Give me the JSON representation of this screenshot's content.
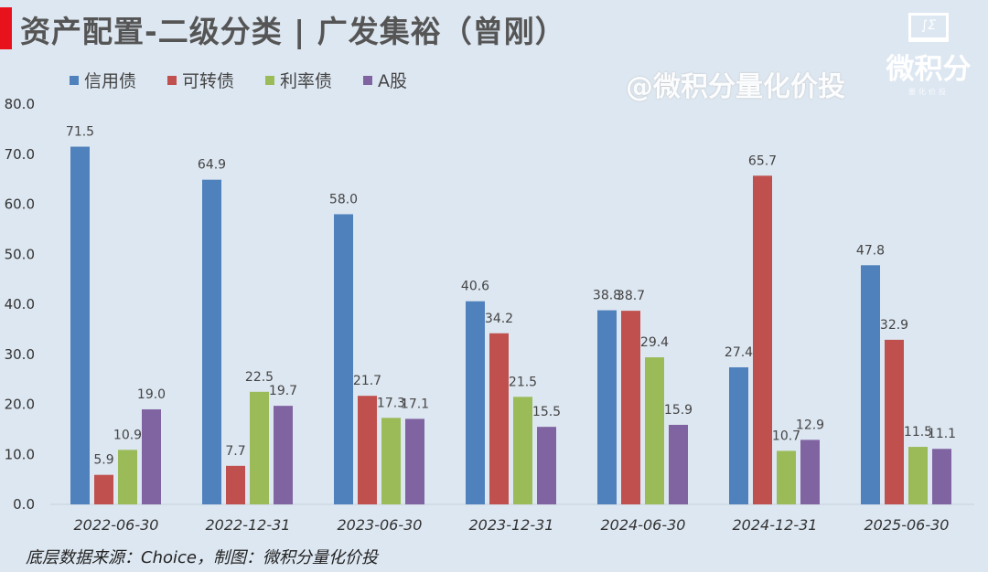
{
  "title": "资产配置-二级分类 | 广发集裕（曾刚）",
  "watermark": "@微积分量化价投",
  "logo": {
    "mark": "∫Σ",
    "name": "微积分",
    "sub": "量化价投"
  },
  "footer": "底层数据来源：Choice，制图：微积分量化价投",
  "chart_data": {
    "type": "bar",
    "categories": [
      "2022-06-30",
      "2022-12-31",
      "2023-06-30",
      "2023-12-31",
      "2024-06-30",
      "2024-12-31",
      "2025-06-30"
    ],
    "series": [
      {
        "name": "信用债",
        "color": "#4f81bd",
        "values": [
          71.5,
          64.9,
          58.0,
          40.6,
          38.8,
          27.4,
          47.8
        ]
      },
      {
        "name": "可转债",
        "color": "#c0504d",
        "values": [
          5.9,
          7.7,
          21.7,
          34.2,
          38.7,
          65.7,
          32.9
        ]
      },
      {
        "name": "利率债",
        "color": "#9bbb59",
        "values": [
          10.9,
          22.5,
          17.3,
          21.5,
          29.4,
          10.7,
          11.5
        ]
      },
      {
        "name": "A股",
        "color": "#8064a2",
        "values": [
          19.0,
          19.7,
          17.1,
          15.5,
          15.9,
          12.9,
          11.1
        ]
      }
    ],
    "ylim": [
      0,
      80
    ],
    "yticks": [
      "0.0",
      "10.0",
      "20.0",
      "30.0",
      "40.0",
      "50.0",
      "60.0",
      "70.0",
      "80.0"
    ],
    "legend": "top-left",
    "grid": false
  }
}
